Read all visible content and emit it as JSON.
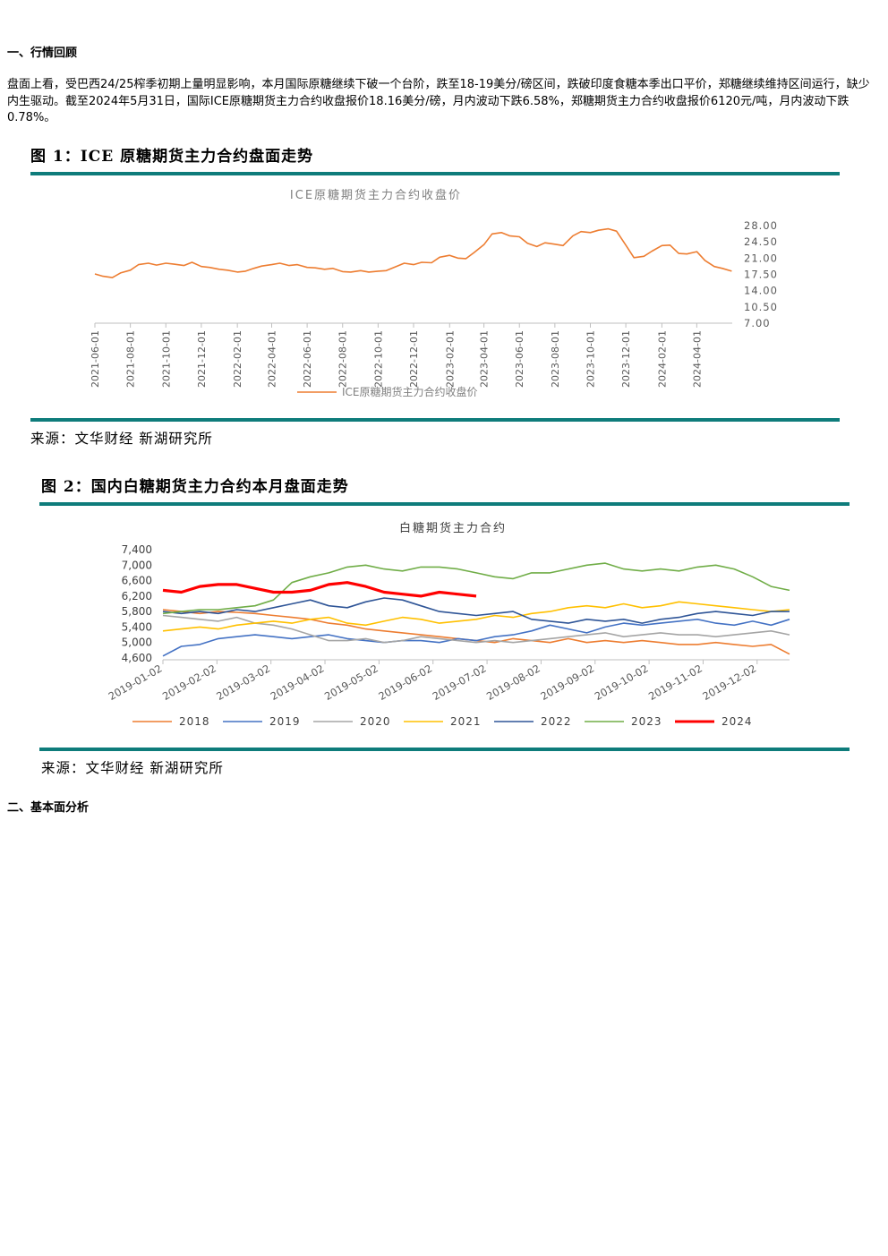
{
  "section1_title": "一、行情回顾",
  "paragraph": "盘面上看，受巴西24/25榨季初期上量明显影响，本月国际原糖继续下破一个台阶，跌至18-19美分/磅区间，跌破印度食糖本季出口平价，郑糖继续维持区间运行，缺少内生驱动。截至2024年5月31日，国际ICE原糖期货主力合约收盘报价18.16美分/磅，月内波动下跌6.58%，郑糖期货主力合约收盘报价6120元/吨，月内波动下跌0.78%。",
  "section2_title": "二、基本面分析",
  "colors": {
    "accent_rule": "#0e7c7b",
    "ice_line": "#ed7d31",
    "axis": "#bfbfbf"
  },
  "figure1": {
    "title": "图 1：ICE 原糖期货主力合约盘面走势",
    "source": "来源：文华财经 新湖研究所",
    "chart_data": {
      "type": "line",
      "title": "ICE原糖期货主力合约收盘价",
      "x_ticks": [
        "2021-06-01",
        "2021-08-01",
        "2021-10-01",
        "2021-12-01",
        "2022-02-01",
        "2022-04-01",
        "2022-06-01",
        "2022-08-01",
        "2022-10-01",
        "2022-12-01",
        "2023-02-01",
        "2023-04-01",
        "2023-06-01",
        "2023-08-01",
        "2023-10-01",
        "2023-12-01",
        "2024-02-01",
        "2024-04-01"
      ],
      "y_ticks": [
        "7.00",
        "10.50",
        "14.00",
        "17.50",
        "21.00",
        "24.50",
        "28.00"
      ],
      "ylim": [
        7,
        28
      ],
      "y_axis_position": "right",
      "legend": "bottom",
      "series": [
        {
          "name": "ICE原糖期货主力合约收盘价",
          "points": [
            [
              "2021-06-01",
              17.6
            ],
            [
              "2021-06-15",
              17.1
            ],
            [
              "2021-07-01",
              16.8
            ],
            [
              "2021-07-15",
              17.8
            ],
            [
              "2021-08-01",
              18.4
            ],
            [
              "2021-08-15",
              19.6
            ],
            [
              "2021-09-01",
              19.9
            ],
            [
              "2021-09-15",
              19.5
            ],
            [
              "2021-10-01",
              19.9
            ],
            [
              "2021-10-15",
              19.7
            ],
            [
              "2021-11-01",
              19.4
            ],
            [
              "2021-11-15",
              20.1
            ],
            [
              "2021-12-01",
              19.2
            ],
            [
              "2021-12-15",
              19.0
            ],
            [
              "2022-01-01",
              18.6
            ],
            [
              "2022-01-15",
              18.4
            ],
            [
              "2022-02-01",
              18.0
            ],
            [
              "2022-02-15",
              18.2
            ],
            [
              "2022-03-01",
              18.8
            ],
            [
              "2022-03-15",
              19.3
            ],
            [
              "2022-04-01",
              19.6
            ],
            [
              "2022-04-15",
              19.9
            ],
            [
              "2022-05-01",
              19.4
            ],
            [
              "2022-05-15",
              19.6
            ],
            [
              "2022-06-01",
              19.0
            ],
            [
              "2022-06-15",
              18.9
            ],
            [
              "2022-07-01",
              18.6
            ],
            [
              "2022-07-15",
              18.8
            ],
            [
              "2022-08-01",
              18.1
            ],
            [
              "2022-08-15",
              18.0
            ],
            [
              "2022-09-01",
              18.3
            ],
            [
              "2022-09-15",
              18.0
            ],
            [
              "2022-10-01",
              18.2
            ],
            [
              "2022-10-15",
              18.3
            ],
            [
              "2022-11-01",
              19.2
            ],
            [
              "2022-11-15",
              19.9
            ],
            [
              "2022-12-01",
              19.6
            ],
            [
              "2022-12-15",
              20.1
            ],
            [
              "2023-01-01",
              20.0
            ],
            [
              "2023-01-15",
              21.2
            ],
            [
              "2023-02-01",
              21.6
            ],
            [
              "2023-02-15",
              21.0
            ],
            [
              "2023-03-01",
              20.9
            ],
            [
              "2023-03-15",
              22.2
            ],
            [
              "2023-04-01",
              23.9
            ],
            [
              "2023-04-15",
              26.2
            ],
            [
              "2023-05-01",
              26.5
            ],
            [
              "2023-05-15",
              25.8
            ],
            [
              "2023-06-01",
              25.6
            ],
            [
              "2023-06-15",
              24.2
            ],
            [
              "2023-07-01",
              23.5
            ],
            [
              "2023-07-15",
              24.3
            ],
            [
              "2023-08-01",
              24.0
            ],
            [
              "2023-08-15",
              23.7
            ],
            [
              "2023-09-01",
              25.8
            ],
            [
              "2023-09-15",
              26.7
            ],
            [
              "2023-10-01",
              26.5
            ],
            [
              "2023-10-15",
              27.0
            ],
            [
              "2023-11-01",
              27.3
            ],
            [
              "2023-11-15",
              26.8
            ],
            [
              "2023-12-01",
              23.8
            ],
            [
              "2023-12-15",
              21.1
            ],
            [
              "2024-01-01",
              21.4
            ],
            [
              "2024-01-15",
              22.5
            ],
            [
              "2024-02-01",
              23.7
            ],
            [
              "2024-02-15",
              23.8
            ],
            [
              "2024-03-01",
              22.0
            ],
            [
              "2024-03-15",
              21.9
            ],
            [
              "2024-04-01",
              22.4
            ],
            [
              "2024-04-15",
              20.5
            ],
            [
              "2024-05-01",
              19.2
            ],
            [
              "2024-05-15",
              18.8
            ],
            [
              "2024-05-31",
              18.2
            ]
          ]
        }
      ]
    }
  },
  "figure2": {
    "title": "图 2：国内白糖期货主力合约本月盘面走势",
    "source": "来源：文华财经 新湖研究所",
    "chart_data": {
      "type": "line",
      "title": "白糖期货主力合约",
      "x_ticks": [
        "2019-01-02",
        "2019-02-02",
        "2019-03-02",
        "2019-04-02",
        "2019-05-02",
        "2019-06-02",
        "2019-07-02",
        "2019-08-02",
        "2019-09-02",
        "2019-10-02",
        "2019-11-02",
        "2019-12-02"
      ],
      "y_ticks": [
        "4,600",
        "5,000",
        "5,400",
        "5,800",
        "6,200",
        "6,600",
        "7,000",
        "7,400"
      ],
      "ylim": [
        4600,
        7400
      ],
      "legend": "bottom",
      "series": [
        {
          "name": "2018",
          "color": "#ed7d31",
          "values": [
            5850,
            5800,
            5750,
            5800,
            5780,
            5750,
            5700,
            5650,
            5600,
            5500,
            5450,
            5350,
            5300,
            5250,
            5200,
            5150,
            5100,
            5050,
            5000,
            5100,
            5050,
            5000,
            5100,
            5000,
            5050,
            5000,
            5050,
            5000,
            4950,
            4950,
            5000,
            4950,
            4900,
            4950,
            4700
          ]
        },
        {
          "name": "2019",
          "color": "#4472c4",
          "values": [
            4650,
            4900,
            4950,
            5100,
            5150,
            5200,
            5150,
            5100,
            5150,
            5200,
            5100,
            5050,
            5000,
            5050,
            5050,
            5000,
            5100,
            5050,
            5150,
            5200,
            5300,
            5450,
            5350,
            5250,
            5400,
            5500,
            5450,
            5500,
            5550,
            5600,
            5500,
            5450,
            5550,
            5450,
            5600
          ]
        },
        {
          "name": "2020",
          "color": "#a5a5a5",
          "values": [
            5700,
            5650,
            5600,
            5550,
            5650,
            5500,
            5450,
            5350,
            5200,
            5050,
            5050,
            5100,
            5000,
            5050,
            5150,
            5100,
            5050,
            5000,
            5050,
            5000,
            5050,
            5100,
            5150,
            5200,
            5250,
            5150,
            5200,
            5250,
            5200,
            5200,
            5150,
            5200,
            5250,
            5300,
            5200
          ]
        },
        {
          "name": "2021",
          "color": "#ffc000",
          "values": [
            5300,
            5350,
            5400,
            5350,
            5450,
            5500,
            5550,
            5500,
            5600,
            5650,
            5500,
            5450,
            5550,
            5650,
            5600,
            5500,
            5550,
            5600,
            5700,
            5650,
            5750,
            5800,
            5900,
            5950,
            5900,
            6000,
            5900,
            5950,
            6050,
            6000,
            5950,
            5900,
            5850,
            5800,
            5850
          ]
        },
        {
          "name": "2022",
          "color": "#2f5597",
          "values": [
            5800,
            5750,
            5800,
            5750,
            5850,
            5800,
            5900,
            6000,
            6100,
            5950,
            5900,
            6050,
            6150,
            6100,
            5950,
            5800,
            5750,
            5700,
            5750,
            5800,
            5600,
            5550,
            5500,
            5600,
            5550,
            5600,
            5500,
            5600,
            5650,
            5750,
            5800,
            5750,
            5700,
            5800,
            5800
          ]
        },
        {
          "name": "2023",
          "color": "#70ad47",
          "values": [
            5750,
            5800,
            5850,
            5850,
            5900,
            5950,
            6100,
            6550,
            6700,
            6800,
            6950,
            7000,
            6900,
            6850,
            6950,
            6950,
            6900,
            6800,
            6700,
            6650,
            6800,
            6800,
            6900,
            7000,
            7050,
            6900,
            6850,
            6900,
            6850,
            6950,
            7000,
            6900,
            6700,
            6450,
            6350
          ]
        },
        {
          "name": "2024",
          "color": "#ff0000",
          "values": [
            6350,
            6300,
            6450,
            6500,
            6500,
            6400,
            6300,
            6300,
            6350,
            6500,
            6550,
            6450,
            6300,
            6250,
            6200,
            6300,
            6250,
            6200
          ]
        }
      ]
    }
  }
}
